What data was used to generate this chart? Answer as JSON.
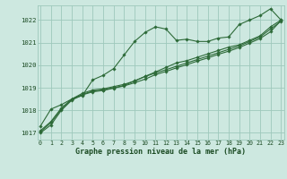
{
  "title": "Graphe pression niveau de la mer (hPa)",
  "background_color": "#cde8e0",
  "plot_bg_color": "#cde8e0",
  "grid_color": "#9ec8bc",
  "line_color": "#2d6a38",
  "text_color": "#1a4a22",
  "x_ticks": [
    0,
    1,
    2,
    3,
    4,
    5,
    6,
    7,
    8,
    9,
    10,
    11,
    12,
    13,
    14,
    15,
    16,
    17,
    18,
    19,
    20,
    21,
    22,
    23
  ],
  "y_ticks": [
    1017,
    1018,
    1019,
    1020,
    1021,
    1022
  ],
  "xlim": [
    -0.3,
    23.3
  ],
  "ylim": [
    1016.7,
    1022.65
  ],
  "series": [
    [
      1017.3,
      1018.05,
      1018.25,
      1018.5,
      1018.65,
      1019.35,
      1019.55,
      1019.85,
      1020.45,
      1021.05,
      1021.45,
      1021.7,
      1021.6,
      1021.1,
      1021.15,
      1021.05,
      1021.05,
      1021.2,
      1021.25,
      1021.8,
      1022.0,
      1022.2,
      1022.5,
      1022.0
    ],
    [
      1017.05,
      1017.45,
      1018.05,
      1018.5,
      1018.7,
      1018.85,
      1018.9,
      1019.0,
      1019.1,
      1019.3,
      1019.5,
      1019.7,
      1019.9,
      1020.1,
      1020.2,
      1020.35,
      1020.5,
      1020.65,
      1020.8,
      1020.9,
      1021.1,
      1021.3,
      1021.7,
      1022.0
    ],
    [
      1017.0,
      1017.35,
      1018.0,
      1018.45,
      1018.68,
      1018.82,
      1018.88,
      1018.98,
      1019.08,
      1019.22,
      1019.38,
      1019.58,
      1019.72,
      1019.88,
      1020.02,
      1020.18,
      1020.32,
      1020.48,
      1020.62,
      1020.78,
      1020.98,
      1021.18,
      1021.48,
      1021.98
    ],
    [
      1017.1,
      1017.5,
      1018.1,
      1018.5,
      1018.75,
      1018.9,
      1018.95,
      1019.05,
      1019.15,
      1019.3,
      1019.5,
      1019.65,
      1019.8,
      1019.95,
      1020.1,
      1020.25,
      1020.4,
      1020.55,
      1020.7,
      1020.85,
      1021.05,
      1021.25,
      1021.6,
      1021.95
    ]
  ]
}
